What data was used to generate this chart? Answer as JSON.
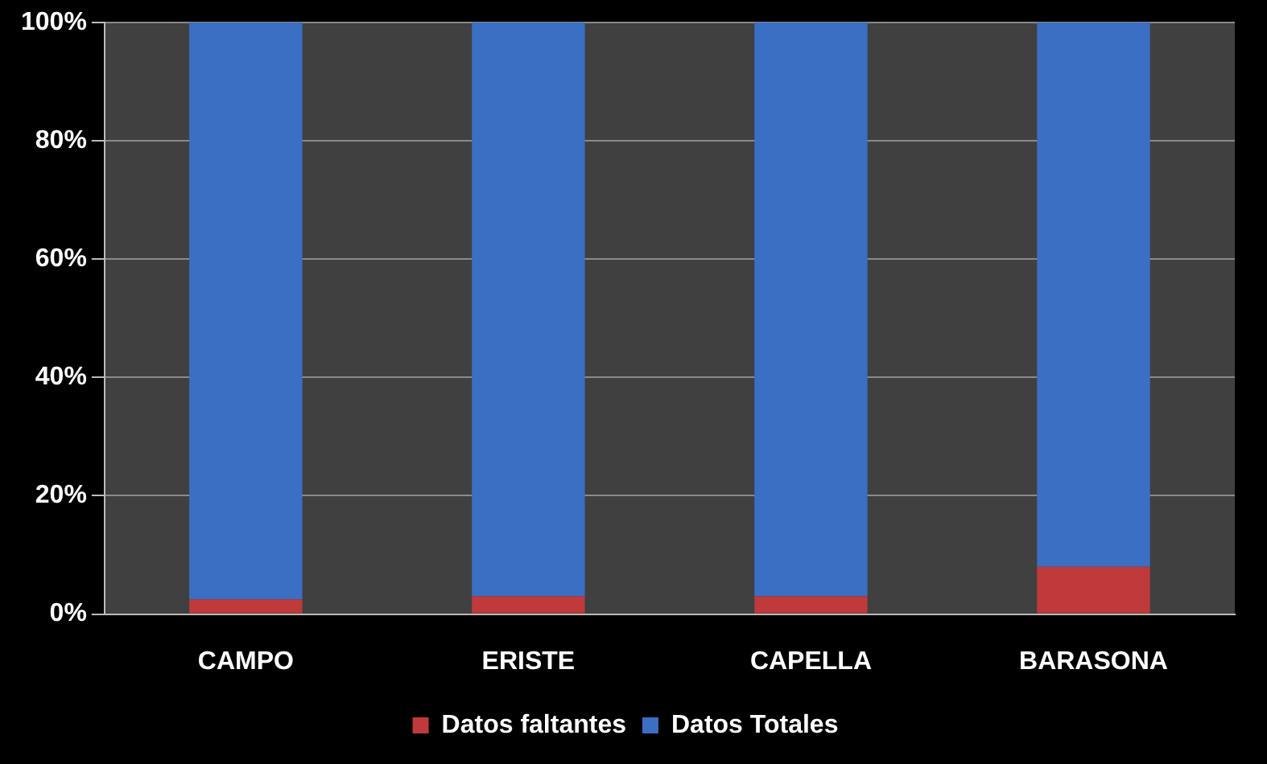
{
  "chart_data": {
    "type": "bar",
    "stacked": true,
    "categories": [
      "CAMPO",
      "ERISTE",
      "CAPELLA",
      "BARASONA"
    ],
    "series": [
      {
        "name": "Datos faltantes",
        "color": "#c0393b",
        "values": [
          2.5,
          3,
          3,
          8
        ]
      },
      {
        "name": "Datos Totales",
        "color": "#3a6fc4",
        "values": [
          97.5,
          97,
          97,
          92
        ]
      }
    ],
    "ylim": [
      0,
      100
    ],
    "yticks": [
      {
        "value": 0,
        "label": "0%"
      },
      {
        "value": 20,
        "label": "20%"
      },
      {
        "value": 40,
        "label": "40%"
      },
      {
        "value": 60,
        "label": "60%"
      },
      {
        "value": 80,
        "label": "80%"
      },
      {
        "value": 100,
        "label": "100%"
      }
    ],
    "grid": "y",
    "legend": "bottom"
  }
}
